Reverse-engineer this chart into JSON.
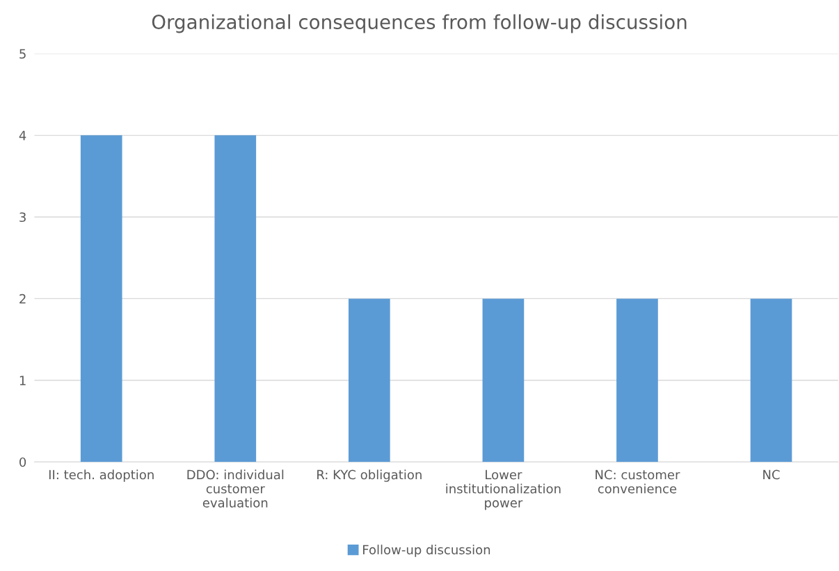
{
  "chart_data": {
    "type": "bar",
    "title": "Organizational consequences from follow-up discussion",
    "categories": [
      "II: tech. adoption",
      "DDO: individual\ncustomer\nevaluation",
      "R: KYC obligation",
      "Lower\ninstitutionalization\npower",
      "NC: customer\nconvenience",
      "NC"
    ],
    "series": [
      {
        "name": "Follow-up discussion",
        "color": "#5b9bd5",
        "values": [
          4,
          4,
          2,
          2,
          2,
          2
        ]
      }
    ],
    "ylim": [
      0,
      5
    ],
    "yticks": [
      0,
      1,
      2,
      3,
      4,
      5
    ],
    "grid": "y",
    "legend": "bottom"
  }
}
